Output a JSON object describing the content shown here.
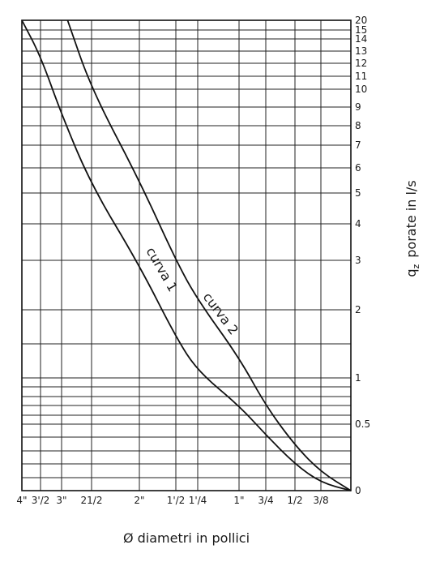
{
  "chart_data": {
    "type": "line",
    "title": "",
    "xlabel": "Ø diametri in pollici",
    "ylabel": "q",
    "ylabel_subscript": "z",
    "ylabel_rest": "porate in l/s",
    "x_ticks": [
      "4\"",
      "3'/2",
      "3\"",
      "21/2",
      "2\"",
      "1'/2",
      "1'/4",
      "1\"",
      "3/4",
      "1/2",
      "3/8"
    ],
    "x_tick_values": [
      4,
      3.5,
      3,
      2.5,
      2,
      1.5,
      1.25,
      1,
      0.75,
      0.5,
      0.375
    ],
    "y_ticks": [
      "0",
      "0.5",
      "1",
      "2",
      "3",
      "4",
      "5",
      "6",
      "7",
      "8",
      "9",
      "10",
      "11",
      "12",
      "13",
      "14",
      "15",
      "20"
    ],
    "y_tick_values": [
      0,
      0.5,
      1,
      2,
      3,
      4,
      5,
      6,
      7,
      8,
      9,
      10,
      11,
      12,
      13,
      14,
      15,
      20
    ],
    "grid": true,
    "series": [
      {
        "name": "curva 1",
        "points": [
          {
            "x": 0.375,
            "y": 0.06
          },
          {
            "x": 0.5,
            "y": 0.2
          },
          {
            "x": 0.75,
            "y": 0.42
          },
          {
            "x": 1,
            "y": 0.7
          },
          {
            "x": 1.25,
            "y": 1.1
          },
          {
            "x": 1.5,
            "y": 1.6
          },
          {
            "x": 2,
            "y": 2.9
          },
          {
            "x": 2.5,
            "y": 5.3
          },
          {
            "x": 3,
            "y": 8.6
          },
          {
            "x": 3.5,
            "y": 12.6
          },
          {
            "x": 4,
            "y": 20
          }
        ]
      },
      {
        "name": "curva 2",
        "points": [
          {
            "x": 0.375,
            "y": 0.14
          },
          {
            "x": 0.5,
            "y": 0.34
          },
          {
            "x": 0.75,
            "y": 0.7
          },
          {
            "x": 1,
            "y": 1.3
          },
          {
            "x": 1.25,
            "y": 2.2
          },
          {
            "x": 1.5,
            "y": 3
          },
          {
            "x": 2,
            "y": 5.5
          },
          {
            "x": 2.5,
            "y": 10
          },
          {
            "x": 2.9,
            "y": 20
          }
        ]
      }
    ]
  }
}
